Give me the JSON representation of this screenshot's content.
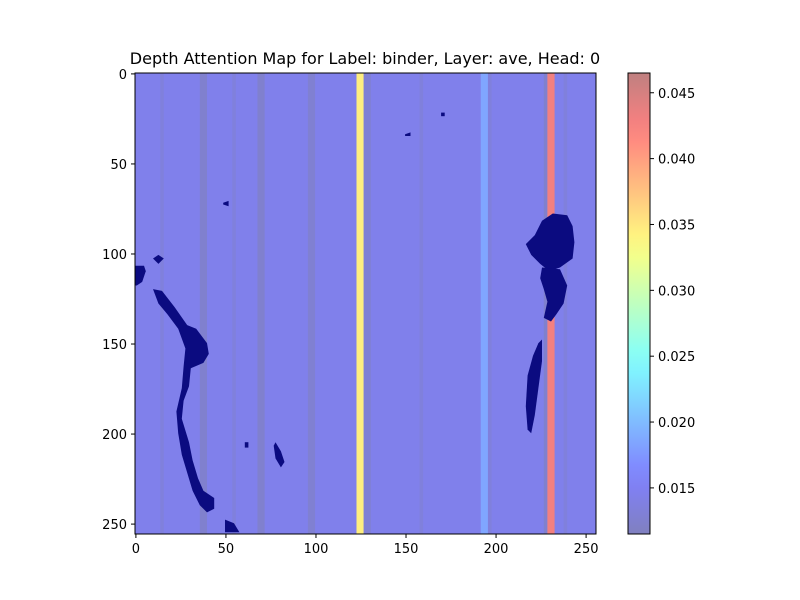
{
  "chart_data": [
    {
      "type": "heatmap",
      "title": "Depth Attention Map for Label: binder, Layer: ave, Head: 0",
      "xlabel": "",
      "ylabel": "",
      "xlim": [
        0,
        255
      ],
      "ylim": [
        255,
        0
      ],
      "x_ticks": [
        0,
        50,
        100,
        150,
        200,
        250
      ],
      "y_ticks": [
        0,
        50,
        100,
        150,
        200,
        250
      ],
      "colormap": "jet",
      "alpha": 0.5,
      "background_value": 0.0145,
      "column_bands": [
        {
          "x_start": 14,
          "x_end": 16,
          "value": 0.0135
        },
        {
          "x_start": 36,
          "x_end": 40,
          "value": 0.0125
        },
        {
          "x_start": 54,
          "x_end": 56,
          "value": 0.0135
        },
        {
          "x_start": 68,
          "x_end": 72,
          "value": 0.0125
        },
        {
          "x_start": 96,
          "x_end": 100,
          "value": 0.0128
        },
        {
          "x_start": 123,
          "x_end": 127,
          "value": 0.0345
        },
        {
          "x_start": 127,
          "x_end": 131,
          "value": 0.013
        },
        {
          "x_start": 158,
          "x_end": 160,
          "value": 0.0135
        },
        {
          "x_start": 192,
          "x_end": 196,
          "value": 0.0185
        },
        {
          "x_start": 196,
          "x_end": 198,
          "value": 0.0135
        },
        {
          "x_start": 227,
          "x_end": 229,
          "value": 0.0125
        },
        {
          "x_start": 229,
          "x_end": 233,
          "value": 0.043
        },
        {
          "x_start": 238,
          "x_end": 240,
          "value": 0.0135
        }
      ],
      "overlay_color": "#0b0b80",
      "overlay_regions": [
        [
          [
            0,
            107
          ],
          [
            5,
            107
          ],
          [
            6,
            110
          ],
          [
            4,
            116
          ],
          [
            1,
            118
          ],
          [
            0,
            118
          ]
        ],
        [
          [
            10,
            120
          ],
          [
            15,
            121
          ],
          [
            22,
            130
          ],
          [
            29,
            140
          ],
          [
            34,
            142
          ],
          [
            40,
            150
          ],
          [
            41,
            156
          ],
          [
            38,
            161
          ],
          [
            31,
            164
          ],
          [
            30,
            174
          ],
          [
            27,
            182
          ],
          [
            26,
            192
          ],
          [
            30,
            205
          ],
          [
            32,
            215
          ],
          [
            35,
            225
          ],
          [
            38,
            232
          ],
          [
            44,
            236
          ],
          [
            44,
            242
          ],
          [
            40,
            244
          ],
          [
            36,
            240
          ],
          [
            32,
            232
          ],
          [
            29,
            222
          ],
          [
            26,
            212
          ],
          [
            24,
            200
          ],
          [
            23,
            188
          ],
          [
            26,
            175
          ],
          [
            27,
            163
          ],
          [
            28,
            153
          ],
          [
            24,
            142
          ],
          [
            18,
            134
          ],
          [
            13,
            128
          ]
        ],
        [
          [
            50,
            248
          ],
          [
            55,
            250
          ],
          [
            58,
            255
          ],
          [
            50,
            255
          ]
        ],
        [
          [
            217,
            95
          ],
          [
            222,
            90
          ],
          [
            226,
            82
          ],
          [
            232,
            78
          ],
          [
            240,
            79
          ],
          [
            243,
            85
          ],
          [
            244,
            94
          ],
          [
            243,
            103
          ],
          [
            236,
            108
          ],
          [
            230,
            110
          ],
          [
            225,
            106
          ],
          [
            220,
            101
          ]
        ],
        [
          [
            226,
            108
          ],
          [
            236,
            109
          ],
          [
            240,
            118
          ],
          [
            238,
            128
          ],
          [
            234,
            134
          ],
          [
            231,
            138
          ],
          [
            227,
            136
          ],
          [
            229,
            127
          ],
          [
            227,
            120
          ],
          [
            225,
            114
          ]
        ],
        [
          [
            224,
            150
          ],
          [
            226,
            148
          ],
          [
            226,
            160
          ],
          [
            224,
            175
          ],
          [
            222,
            190
          ],
          [
            220,
            200
          ],
          [
            218,
            198
          ],
          [
            217,
            185
          ],
          [
            218,
            168
          ],
          [
            221,
            157
          ]
        ],
        [
          [
            10,
            103
          ],
          [
            13,
            101
          ],
          [
            16,
            103
          ],
          [
            13,
            106
          ]
        ],
        [
          [
            150,
            34
          ],
          [
            153,
            33
          ],
          [
            153,
            35
          ],
          [
            150,
            35
          ]
        ],
        [
          [
            49,
            72
          ],
          [
            52,
            71
          ],
          [
            52,
            74
          ],
          [
            49,
            73
          ]
        ],
        [
          [
            61,
            205
          ],
          [
            63,
            205
          ],
          [
            63,
            208
          ],
          [
            61,
            208
          ]
        ],
        [
          [
            77,
            207
          ],
          [
            78,
            205
          ],
          [
            81,
            210
          ],
          [
            83,
            216
          ],
          [
            81,
            219
          ],
          [
            78,
            214
          ]
        ],
        [
          [
            170,
            22
          ],
          [
            172,
            22
          ],
          [
            172,
            24
          ],
          [
            170,
            24
          ]
        ]
      ],
      "colorbar": {
        "min": 0.0115,
        "max": 0.0465,
        "ticks": [
          0.015,
          0.02,
          0.025,
          0.03,
          0.035,
          0.04,
          0.045
        ],
        "tick_labels": [
          "0.015",
          "0.020",
          "0.025",
          "0.030",
          "0.035",
          "0.040",
          "0.045"
        ]
      }
    }
  ]
}
